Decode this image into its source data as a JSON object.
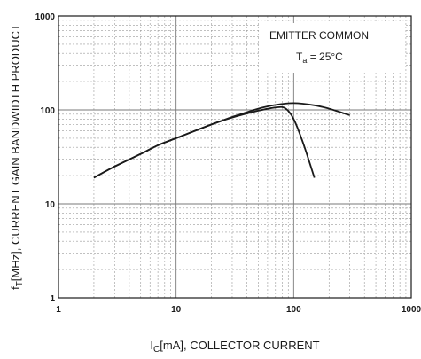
{
  "chart_data": {
    "type": "line",
    "xscale": "log",
    "yscale": "log",
    "xlim": [
      1,
      1000
    ],
    "ylim": [
      1,
      1000
    ],
    "grid": true,
    "title": "",
    "xlabel": {
      "main": "I",
      "sub": "C",
      "rest": "[mA], COLLECTOR CURRENT"
    },
    "ylabel": {
      "main": "f",
      "sub": "T",
      "rest": "[MHz], CURRENT GAIN BANDWIDTH PRODUCT"
    },
    "x_ticks": [
      "1",
      "10",
      "100",
      "1000"
    ],
    "y_ticks": [
      "1",
      "10",
      "100",
      "1000"
    ],
    "annotations": {
      "line1": "EMITTER COMMON",
      "line2": {
        "main": "T",
        "sub": "a",
        "rest": " = 25°C"
      }
    },
    "series": [
      {
        "x": [
          2,
          3,
          5,
          7,
          10,
          20,
          30,
          50,
          70,
          100,
          150,
          200,
          300
        ],
        "y": [
          19,
          25,
          34,
          42,
          50,
          70,
          84,
          103,
          113,
          118,
          112,
          103,
          88
        ]
      },
      {
        "x": [
          2,
          3,
          5,
          7,
          10,
          20,
          30,
          50,
          70,
          85,
          100,
          120,
          150
        ],
        "y": [
          19,
          25,
          34,
          42,
          50,
          70,
          83,
          98,
          106,
          104,
          80,
          45,
          19
        ]
      }
    ]
  }
}
